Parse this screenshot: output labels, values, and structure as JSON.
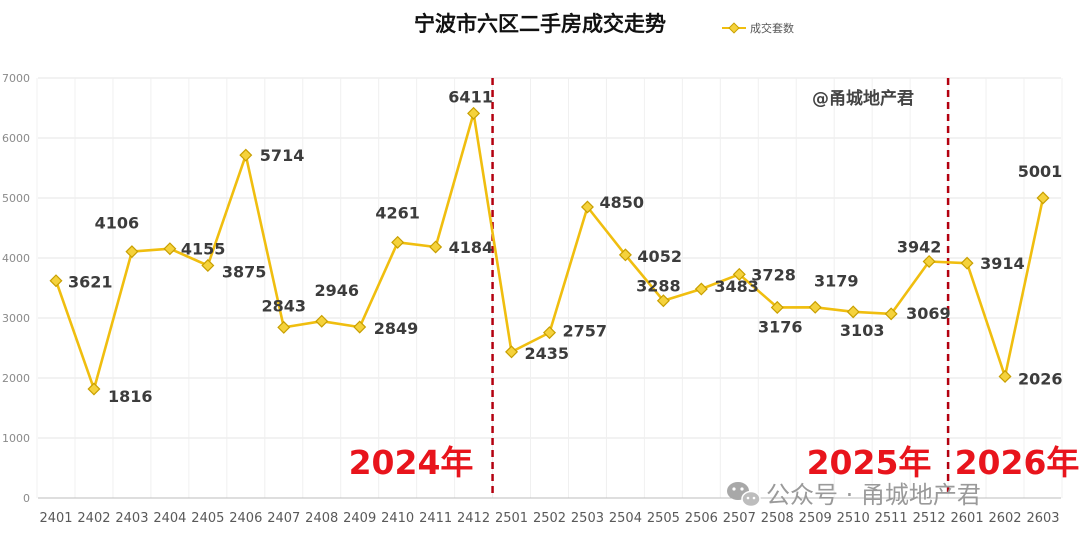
{
  "chart_data": {
    "type": "line",
    "title": "宁波市六区二手房成交走势",
    "categories": [
      "2401",
      "2402",
      "2403",
      "2404",
      "2405",
      "2406",
      "2407",
      "2408",
      "2409",
      "2410",
      "2411",
      "2412",
      "2501",
      "2502",
      "2503",
      "2504",
      "2505",
      "2506",
      "2507",
      "2508",
      "2509",
      "2510",
      "2511",
      "2512",
      "2601",
      "2602",
      "2603"
    ],
    "series": [
      {
        "name": "成交套数",
        "values": [
          3621,
          1816,
          4106,
          4155,
          3875,
          5714,
          2843,
          2946,
          2849,
          4261,
          4184,
          6411,
          2435,
          2757,
          4850,
          4052,
          3288,
          3483,
          3728,
          3176,
          3179,
          3103,
          3069,
          3942,
          3914,
          2026,
          5001
        ]
      }
    ],
    "yticks": [
      "0",
      "1000",
      "2000",
      "3000",
      "4000",
      "5000",
      "6000",
      "7000"
    ],
    "ylim": [
      0,
      7000
    ],
    "grid": true,
    "legend_placement": "top-right",
    "line_color": "#f0be0f",
    "marker_fill": "#f5d23c",
    "annotations": {
      "year_labels": [
        "2024年",
        "2025年",
        "2026年"
      ],
      "watermark": "@甬城地产君",
      "footer": "公众号 · 甬城地产君"
    },
    "year_label_color": "#e8141c",
    "divider_color": "#b3000f"
  }
}
